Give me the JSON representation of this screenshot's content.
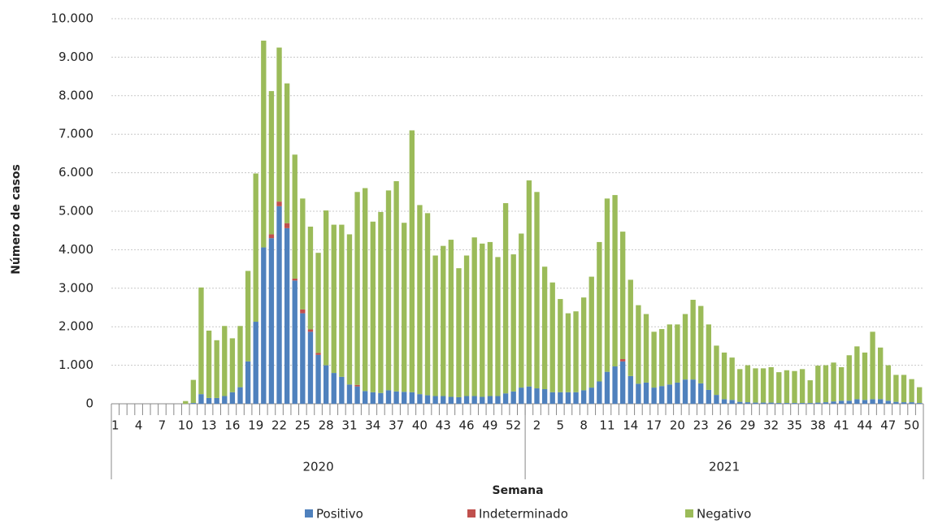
{
  "chart_data": {
    "type": "stacked-bar",
    "y_label": "Número de casos",
    "x_label": "Semana",
    "groups": [
      {
        "name": "2020",
        "categories": [
          "1",
          null,
          null,
          "4",
          null,
          null,
          "7",
          null,
          null,
          "10",
          null,
          null,
          "13",
          null,
          null,
          "16",
          null,
          null,
          "19",
          null,
          null,
          "22",
          null,
          null,
          "25",
          null,
          null,
          "28",
          null,
          null,
          "31",
          null,
          null,
          "34",
          null,
          null,
          "37",
          null,
          null,
          "40",
          null,
          null,
          "43",
          null,
          null,
          "46",
          null,
          null,
          "49",
          null,
          null,
          "52",
          null
        ]
      },
      {
        "name": "2021",
        "categories": [
          null,
          "2",
          null,
          null,
          "5",
          null,
          null,
          "8",
          null,
          null,
          "11",
          null,
          null,
          "14",
          null,
          null,
          "17",
          null,
          null,
          "20",
          null,
          null,
          "23",
          null,
          null,
          "26",
          null,
          null,
          "29",
          null,
          null,
          "32",
          null,
          null,
          "35",
          null,
          null,
          "38",
          null,
          null,
          "41",
          null,
          null,
          "44",
          null,
          null,
          "47",
          null,
          null,
          "50",
          null
        ]
      }
    ],
    "series": [
      {
        "name": "Positivo",
        "color": "#4f81bd",
        "values": [
          0,
          0,
          0,
          0,
          0,
          0,
          0,
          0,
          0,
          0,
          20,
          250,
          150,
          150,
          200,
          300,
          430,
          1100,
          2130,
          4060,
          4300,
          5130,
          4560,
          3200,
          2350,
          1870,
          1270,
          1000,
          800,
          700,
          500,
          450,
          330,
          300,
          280,
          350,
          320,
          310,
          300,
          250,
          220,
          200,
          200,
          180,
          170,
          200,
          200,
          180,
          200,
          200,
          270,
          320,
          420,
          450,
          400,
          380,
          300,
          300,
          300,
          300,
          350,
          420,
          580,
          830,
          970,
          1100,
          720,
          520,
          550,
          420,
          460,
          500,
          550,
          630,
          630,
          530,
          360,
          230,
          120,
          100,
          50,
          40,
          30,
          30,
          30,
          20,
          20,
          20,
          20,
          20,
          30,
          40,
          60,
          80,
          80,
          120,
          100,
          120,
          120,
          80,
          50,
          40,
          40,
          20
        ]
      },
      {
        "name": "Indeterminado",
        "color": "#c0504d",
        "values": [
          0,
          0,
          0,
          0,
          0,
          0,
          0,
          0,
          0,
          0,
          0,
          0,
          0,
          0,
          0,
          0,
          0,
          0,
          0,
          0,
          100,
          120,
          130,
          50,
          100,
          60,
          50,
          0,
          0,
          0,
          0,
          40,
          0,
          0,
          0,
          0,
          0,
          0,
          0,
          0,
          0,
          0,
          0,
          0,
          0,
          0,
          0,
          0,
          0,
          0,
          0,
          0,
          0,
          0,
          0,
          0,
          0,
          0,
          0,
          0,
          0,
          0,
          0,
          0,
          0,
          60,
          0,
          0,
          0,
          0,
          0,
          0,
          0,
          0,
          0,
          0,
          0,
          0,
          0,
          0,
          0,
          0,
          0,
          0,
          0,
          0,
          0,
          0,
          0,
          0,
          0,
          0,
          0,
          0,
          0,
          0,
          0,
          0,
          0,
          0,
          0,
          0,
          0,
          0
        ]
      },
      {
        "name": "Negativo",
        "color": "#9bbb59",
        "values": [
          0,
          0,
          0,
          0,
          0,
          0,
          0,
          0,
          0,
          70,
          600,
          2770,
          1750,
          1500,
          1820,
          1400,
          1590,
          2350,
          3850,
          5370,
          3720,
          4000,
          3630,
          3220,
          2880,
          2670,
          2600,
          4020,
          3850,
          3950,
          3900,
          5010,
          5270,
          4430,
          4700,
          5190,
          5460,
          4390,
          6800,
          4910,
          4730,
          3650,
          3900,
          4080,
          3350,
          3650,
          4120,
          3980,
          4000,
          3610,
          4940,
          3560,
          4000,
          5350,
          5100,
          3180,
          2850,
          2420,
          2050,
          2100,
          2410,
          2880,
          3620,
          4500,
          4450,
          3310,
          2500,
          2040,
          1780,
          1450,
          1480,
          1560,
          1510,
          1700,
          2070,
          2010,
          1700,
          1280,
          1210,
          1100,
          850,
          960,
          890,
          890,
          920,
          800,
          850,
          830,
          880,
          590,
          960,
          960,
          1010,
          870,
          1180,
          1370,
          1230,
          1750,
          1340,
          920,
          700,
          710,
          600,
          410
        ]
      }
    ],
    "ylim": [
      0,
      10000
    ],
    "yticks": [
      0,
      {
        "value": 1000,
        "label": "1.000"
      },
      {
        "value": 2000,
        "label": "2.000"
      },
      {
        "value": 3000,
        "label": "3.000"
      },
      {
        "value": 4000,
        "label": "4.000"
      },
      {
        "value": 5000,
        "label": "5.000"
      },
      {
        "value": 6000,
        "label": "6.000"
      },
      {
        "value": 7000,
        "label": "7.000"
      },
      {
        "value": 8000,
        "label": "8.000"
      },
      {
        "value": 9000,
        "label": "9.000"
      },
      {
        "value": 10000,
        "label": "10.000"
      }
    ],
    "grid": true,
    "legend": "bottom"
  }
}
